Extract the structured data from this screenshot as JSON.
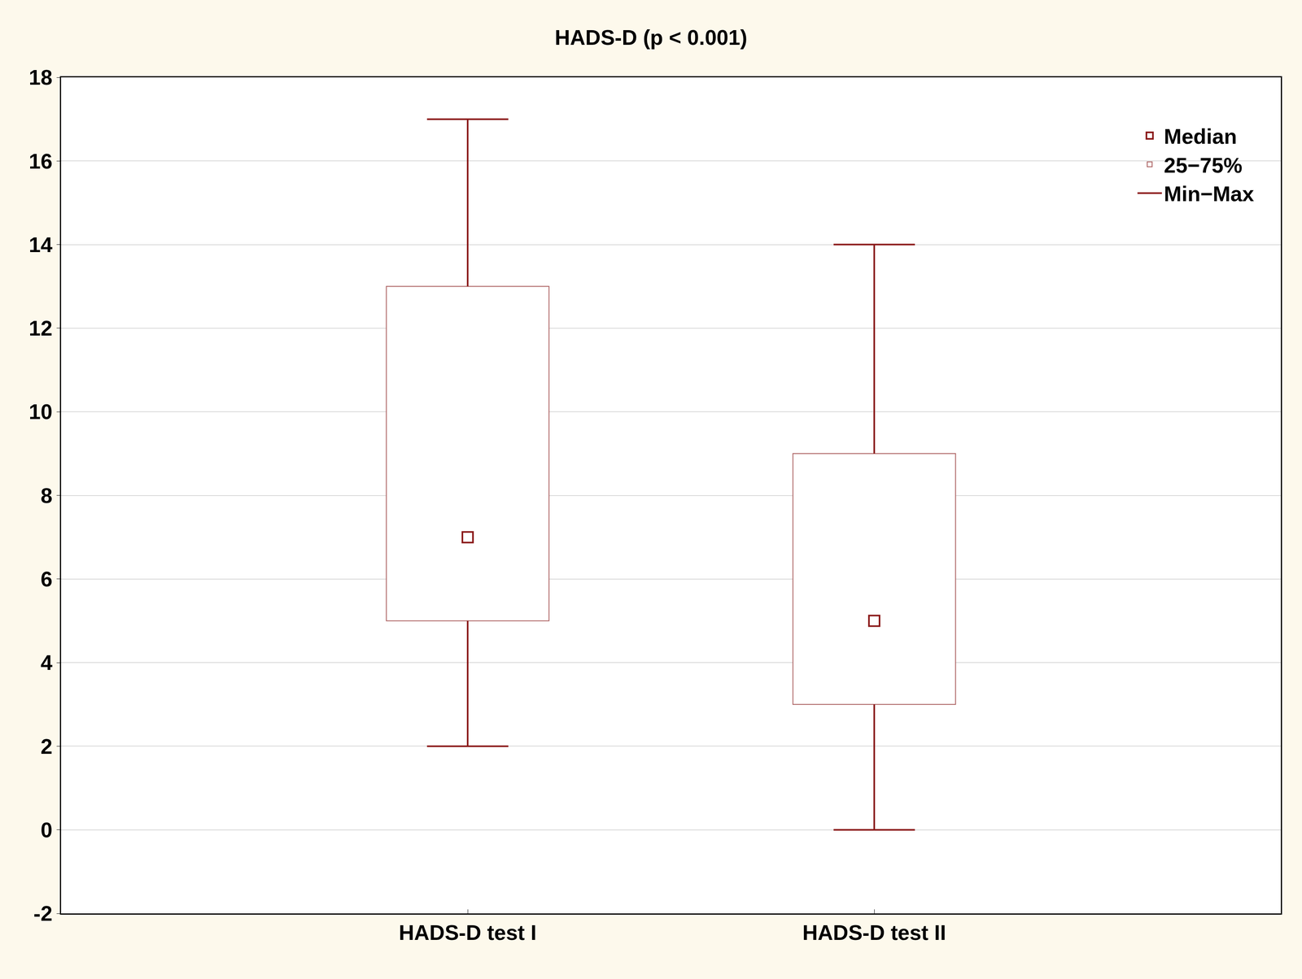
{
  "chart_data": {
    "type": "box",
    "title": "HADS-D (p < 0.001)",
    "categories": [
      "HADS-D test I",
      "HADS-D test II"
    ],
    "series": [
      {
        "name": "Median",
        "values": [
          7,
          5
        ],
        "marker": "square",
        "color": "#8b1a1a"
      },
      {
        "name": "25−75%",
        "values": [
          [
            5,
            13
          ],
          [
            3,
            9
          ]
        ],
        "color": "#a85a5a"
      },
      {
        "name": "Min−Max",
        "values": [
          [
            2,
            17
          ],
          [
            0,
            14
          ]
        ],
        "color": "#8b1a1a"
      }
    ],
    "ylim": [
      -2,
      18
    ],
    "yticks": [
      -2,
      0,
      2,
      4,
      6,
      8,
      10,
      12,
      14,
      16,
      18
    ],
    "grid": true,
    "legend": "top right"
  }
}
